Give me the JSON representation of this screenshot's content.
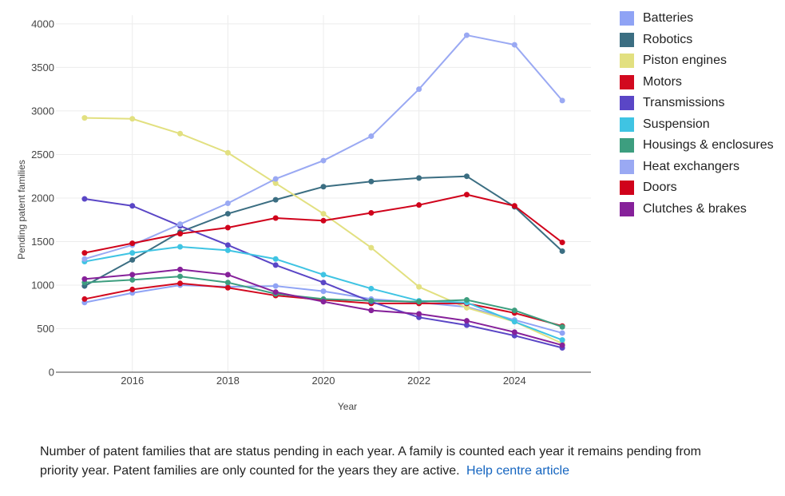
{
  "chart_data": {
    "type": "line",
    "xlabel": "Year",
    "ylabel": "Pending patent families",
    "x": [
      2015,
      2016,
      2017,
      2018,
      2019,
      2020,
      2021,
      2022,
      2023,
      2024,
      2025
    ],
    "xlim": [
      2014.4,
      2025.6
    ],
    "ylim": [
      0,
      4100
    ],
    "x_ticks": [
      2016,
      2018,
      2020,
      2022,
      2024
    ],
    "y_ticks": [
      0,
      500,
      1000,
      1500,
      2000,
      2500,
      3000,
      3500,
      4000
    ],
    "grid": true,
    "legend_position": "right",
    "series": [
      {
        "name": "Batteries",
        "color": "#8fa3f5",
        "values": [
          800,
          910,
          1000,
          980,
          990,
          930,
          840,
          800,
          750,
          600,
          450
        ]
      },
      {
        "name": "Robotics",
        "color": "#3b6e82",
        "values": [
          990,
          1290,
          1610,
          1820,
          1980,
          2130,
          2190,
          2230,
          2250,
          1900,
          1390
        ]
      },
      {
        "name": "Piston engines",
        "color": "#e2e080",
        "values": [
          2920,
          2910,
          2740,
          2520,
          2170,
          1820,
          1430,
          980,
          740,
          580,
          330
        ]
      },
      {
        "name": "Motors",
        "color": "#d2091f",
        "values": [
          840,
          950,
          1020,
          970,
          880,
          830,
          790,
          790,
          790,
          680,
          530
        ]
      },
      {
        "name": "Transmissions",
        "color": "#5a46c6",
        "values": [
          1990,
          1910,
          1680,
          1460,
          1230,
          1030,
          810,
          630,
          540,
          420,
          280
        ]
      },
      {
        "name": "Suspension",
        "color": "#3fc4e3",
        "values": [
          1270,
          1370,
          1440,
          1400,
          1300,
          1120,
          960,
          820,
          800,
          580,
          370
        ]
      },
      {
        "name": "Housings & enclosures",
        "color": "#3d9e7f",
        "values": [
          1030,
          1060,
          1100,
          1030,
          900,
          840,
          820,
          810,
          830,
          710,
          520
        ]
      },
      {
        "name": "Heat exchangers",
        "color": "#9aa9f3",
        "values": [
          1300,
          1460,
          1700,
          1940,
          2220,
          2430,
          2710,
          3250,
          3870,
          3760,
          3120
        ]
      },
      {
        "name": "Doors",
        "color": "#d0021b",
        "values": [
          1370,
          1480,
          1590,
          1660,
          1770,
          1740,
          1830,
          1920,
          2040,
          1910,
          1490
        ]
      },
      {
        "name": "Clutches & brakes",
        "color": "#86219a",
        "values": [
          1070,
          1120,
          1180,
          1120,
          920,
          810,
          710,
          670,
          590,
          460,
          310
        ]
      }
    ]
  },
  "caption": {
    "text": "Number of patent families that are status pending in each year. A family is counted each year it remains pending from priority year. Patent families are only counted for the years they are active.",
    "link_text": "Help centre article"
  }
}
